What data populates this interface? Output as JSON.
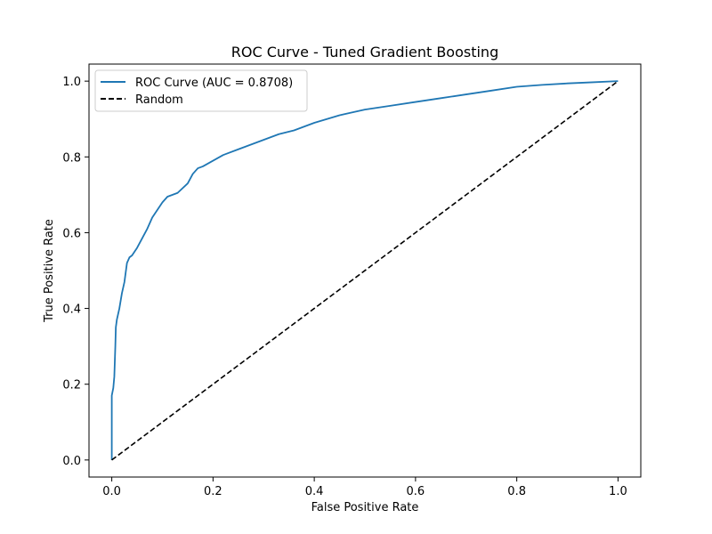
{
  "chart_data": {
    "type": "line",
    "title": "ROC Curve - Tuned Gradient Boosting",
    "xlabel": "False Positive Rate",
    "ylabel": "True Positive Rate",
    "xlim": [
      -0.045,
      1.045
    ],
    "ylim": [
      -0.045,
      1.045
    ],
    "xticks": [
      "0.0",
      "0.2",
      "0.4",
      "0.6",
      "0.8",
      "1.0"
    ],
    "yticks": [
      "0.0",
      "0.2",
      "0.4",
      "0.6",
      "0.8",
      "1.0"
    ],
    "grid": false,
    "legend_position": "top-left",
    "series": [
      {
        "name": "ROC Curve (AUC = 0.8708)",
        "color": "#1f77b4",
        "style": "solid",
        "x": [
          0.0,
          0.0,
          0.003,
          0.005,
          0.007,
          0.008,
          0.01,
          0.015,
          0.02,
          0.025,
          0.03,
          0.035,
          0.04,
          0.05,
          0.06,
          0.07,
          0.08,
          0.09,
          0.1,
          0.11,
          0.12,
          0.13,
          0.15,
          0.16,
          0.17,
          0.18,
          0.2,
          0.22,
          0.25,
          0.28,
          0.3,
          0.33,
          0.36,
          0.4,
          0.45,
          0.5,
          0.55,
          0.6,
          0.65,
          0.7,
          0.75,
          0.8,
          0.85,
          0.9,
          0.95,
          1.0
        ],
        "y": [
          0.0,
          0.17,
          0.19,
          0.22,
          0.3,
          0.35,
          0.37,
          0.4,
          0.44,
          0.47,
          0.52,
          0.535,
          0.54,
          0.56,
          0.585,
          0.61,
          0.64,
          0.66,
          0.68,
          0.695,
          0.7,
          0.705,
          0.73,
          0.755,
          0.77,
          0.775,
          0.79,
          0.805,
          0.82,
          0.835,
          0.845,
          0.86,
          0.87,
          0.89,
          0.91,
          0.925,
          0.935,
          0.945,
          0.955,
          0.965,
          0.975,
          0.985,
          0.99,
          0.994,
          0.997,
          1.0
        ]
      },
      {
        "name": "Random",
        "color": "#000000",
        "style": "dashed",
        "x": [
          0.0,
          1.0
        ],
        "y": [
          0.0,
          1.0
        ]
      }
    ]
  }
}
